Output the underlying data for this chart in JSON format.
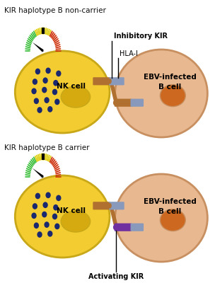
{
  "title1": "KIR haplotype B non-carrier",
  "title2": "KIR haplotype B carrier",
  "label_inhibitory": "Inhibitory KIR",
  "label_hla": "HLA-I",
  "label_activating": "Activating KIR",
  "label_nk": "NK cell",
  "label_ebv": "EBV-infected\nB cell",
  "color_bg": "#ffffff",
  "color_nk_cell": "#f2cc30",
  "color_nk_cell_edge": "#c8a818",
  "color_nucleus_nk": "#d4aa10",
  "color_ebv_cell": "#e8b890",
  "color_ebv_cell_edge": "#c89060",
  "color_nucleus_ebv": "#cc6820",
  "color_dots": "#1a2870",
  "color_receptor_brown": "#b07030",
  "color_receptor_gray": "#8899bb",
  "color_receptor_purple": "#7030a0",
  "color_gauge_green": "#30bb30",
  "color_gauge_yellow": "#ddcc00",
  "color_gauge_red": "#cc2800",
  "color_needle": "#080808",
  "color_title": "#101010",
  "fig_width": 3.04,
  "fig_height": 4.0,
  "dpi": 100
}
